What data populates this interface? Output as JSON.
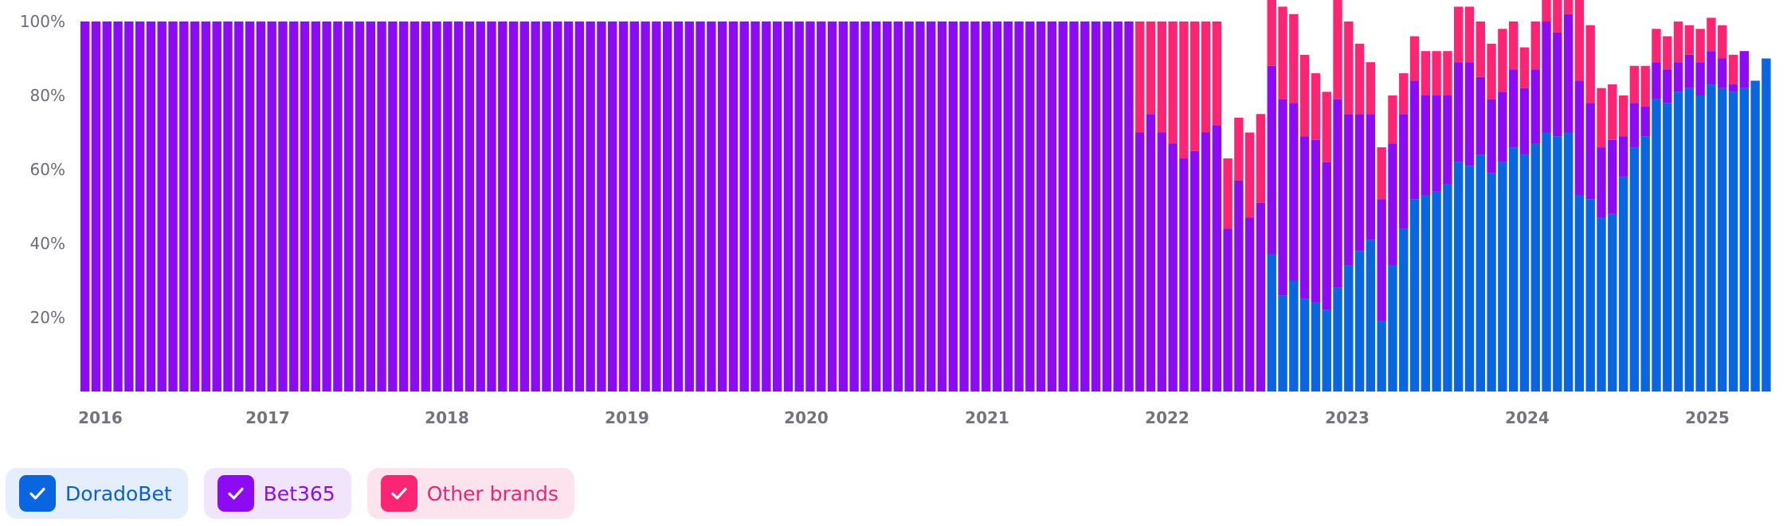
{
  "chart_data": {
    "type": "bar",
    "stacked": true,
    "normalized": true,
    "x_tick_labels": [
      "2016",
      "2017",
      "2018",
      "2019",
      "2020",
      "2021",
      "2022",
      "2023",
      "2024",
      "2025"
    ],
    "y_tick_labels": [
      "20%",
      "40%",
      "60%",
      "80%",
      "100%"
    ],
    "ylim": [
      0,
      100
    ],
    "series": [
      {
        "name": "DoradoBet",
        "color": "#0a66e0",
        "values": [
          0,
          0,
          0,
          0,
          0,
          0,
          0,
          0,
          0,
          0,
          0,
          0,
          0,
          0,
          0,
          0,
          0,
          0,
          0,
          0,
          0,
          0,
          0,
          0,
          0,
          0,
          0,
          0,
          0,
          0,
          0,
          0,
          0,
          0,
          0,
          0,
          0,
          0,
          0,
          0,
          0,
          0,
          0,
          0,
          0,
          0,
          0,
          0,
          0,
          0,
          0,
          0,
          0,
          0,
          0,
          0,
          0,
          0,
          0,
          0,
          0,
          0,
          0,
          0,
          0,
          0,
          0,
          0,
          0,
          0,
          0,
          0,
          0,
          0,
          0,
          0,
          0,
          0,
          0,
          0,
          0,
          0,
          0,
          0,
          0,
          0,
          0,
          0,
          0,
          0,
          0,
          0,
          0,
          0,
          0,
          0,
          0,
          0,
          0,
          0,
          0,
          0,
          0,
          0,
          0,
          0,
          0,
          0,
          37,
          26,
          30,
          25,
          24,
          22,
          28,
          34,
          38,
          41,
          19,
          34,
          44,
          52,
          53,
          54,
          56,
          62,
          61,
          64,
          59,
          62,
          66,
          64,
          67,
          70,
          69,
          70,
          53,
          52,
          47,
          48,
          58,
          66,
          69,
          79,
          78,
          81,
          82,
          80,
          83,
          82,
          81,
          82,
          84,
          90
        ]
      },
      {
        "name": "Bet365",
        "color": "#8d0bf2",
        "values": [
          100,
          100,
          100,
          100,
          100,
          100,
          100,
          100,
          100,
          100,
          100,
          100,
          100,
          100,
          100,
          100,
          100,
          100,
          100,
          100,
          100,
          100,
          100,
          100,
          100,
          100,
          100,
          100,
          100,
          100,
          100,
          100,
          100,
          100,
          100,
          100,
          100,
          100,
          100,
          100,
          100,
          100,
          100,
          100,
          100,
          100,
          100,
          100,
          100,
          100,
          100,
          100,
          100,
          100,
          100,
          100,
          100,
          100,
          100,
          100,
          100,
          100,
          100,
          100,
          100,
          100,
          100,
          100,
          100,
          100,
          100,
          100,
          100,
          100,
          100,
          100,
          100,
          100,
          100,
          100,
          100,
          100,
          100,
          100,
          100,
          100,
          100,
          100,
          100,
          100,
          100,
          100,
          100,
          100,
          100,
          100,
          70,
          75,
          70,
          67,
          63,
          65,
          70,
          72,
          44,
          57,
          47,
          51,
          51,
          53,
          48,
          44,
          44,
          40,
          51,
          41,
          37,
          34,
          33,
          33,
          31,
          32,
          27,
          26,
          24,
          27,
          28,
          21,
          20,
          19,
          21,
          18,
          20,
          30,
          28,
          32,
          31,
          26,
          19,
          20,
          11,
          12,
          8,
          10,
          9,
          8,
          9,
          9,
          9,
          8,
          2,
          10
        ]
      },
      {
        "name": "Other brands",
        "color": "#fb2574",
        "values": [
          0,
          0,
          0,
          0,
          0,
          0,
          0,
          0,
          0,
          0,
          0,
          0,
          0,
          0,
          0,
          0,
          0,
          0,
          0,
          0,
          0,
          0,
          0,
          0,
          0,
          0,
          0,
          0,
          0,
          0,
          0,
          0,
          0,
          0,
          0,
          0,
          0,
          0,
          0,
          0,
          0,
          0,
          0,
          0,
          0,
          0,
          0,
          0,
          0,
          0,
          0,
          0,
          0,
          0,
          0,
          0,
          0,
          0,
          0,
          0,
          0,
          0,
          0,
          0,
          0,
          0,
          0,
          0,
          0,
          0,
          0,
          0,
          0,
          0,
          0,
          0,
          0,
          0,
          0,
          0,
          0,
          0,
          0,
          0,
          0,
          0,
          0,
          0,
          0,
          0,
          0,
          0,
          0,
          0,
          0,
          0,
          30,
          25,
          30,
          33,
          37,
          35,
          30,
          28,
          19,
          17,
          23,
          24,
          25,
          25,
          24,
          22,
          18,
          19,
          30,
          25,
          19,
          14,
          14,
          13,
          11,
          12,
          12,
          12,
          12,
          15,
          15,
          15,
          15,
          17,
          13,
          11,
          13,
          10,
          16,
          20,
          22,
          21,
          16,
          15,
          11,
          10,
          11,
          9,
          9,
          11,
          8,
          9,
          9,
          9,
          8,
          0
        ]
      }
    ],
    "grid": false,
    "legend_position": "bottom-left"
  },
  "legend": {
    "items": [
      {
        "label": "DoradoBet",
        "color": "#0a66e0",
        "bg": "#e4eefc",
        "text_color": "#0a5fcf"
      },
      {
        "label": "Bet365",
        "color": "#8d0bf2",
        "bg": "#f1e4fd",
        "text_color": "#8d0bf2"
      },
      {
        "label": "Other brands",
        "color": "#fb2574",
        "bg": "#fde3ed",
        "text_color": "#ef2471"
      }
    ]
  }
}
